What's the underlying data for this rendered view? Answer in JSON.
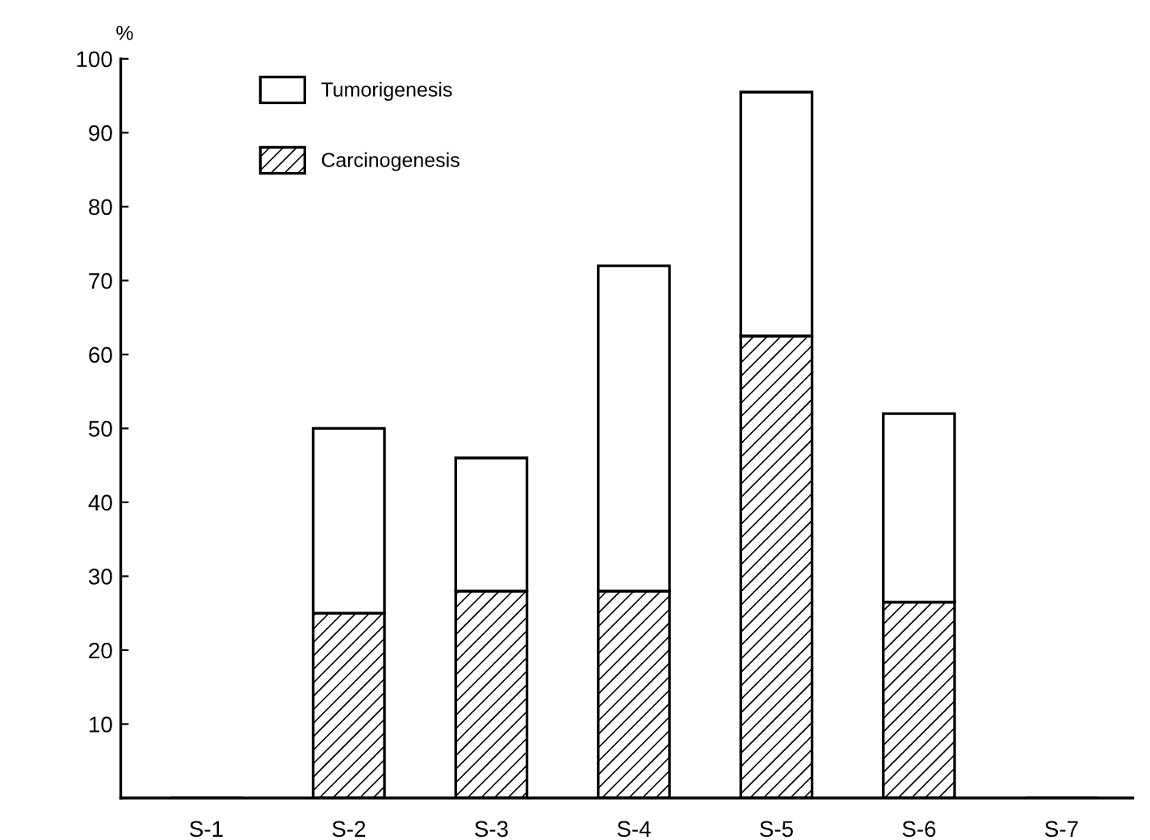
{
  "chart_data": {
    "type": "bar",
    "stacked": true,
    "ylabel": "%",
    "categories": [
      "S-1",
      "S-2",
      "S-3",
      "S-4",
      "S-5",
      "S-6",
      "S-7"
    ],
    "series": [
      {
        "name": "Carcinogenesis",
        "color": "#000000",
        "values": [
          0,
          25,
          28,
          28,
          62.5,
          26.5,
          0
        ]
      },
      {
        "name": "Tumorigenesis",
        "color": "#ffffff",
        "values": [
          0,
          25,
          18,
          44,
          33,
          25.5,
          0
        ]
      }
    ],
    "ylim": [
      0,
      100
    ],
    "yticks": [
      {
        "value": 0,
        "label": null
      },
      10,
      20,
      30,
      40,
      50,
      60,
      70,
      80,
      90,
      100
    ],
    "grid": false,
    "legend": "top left"
  }
}
